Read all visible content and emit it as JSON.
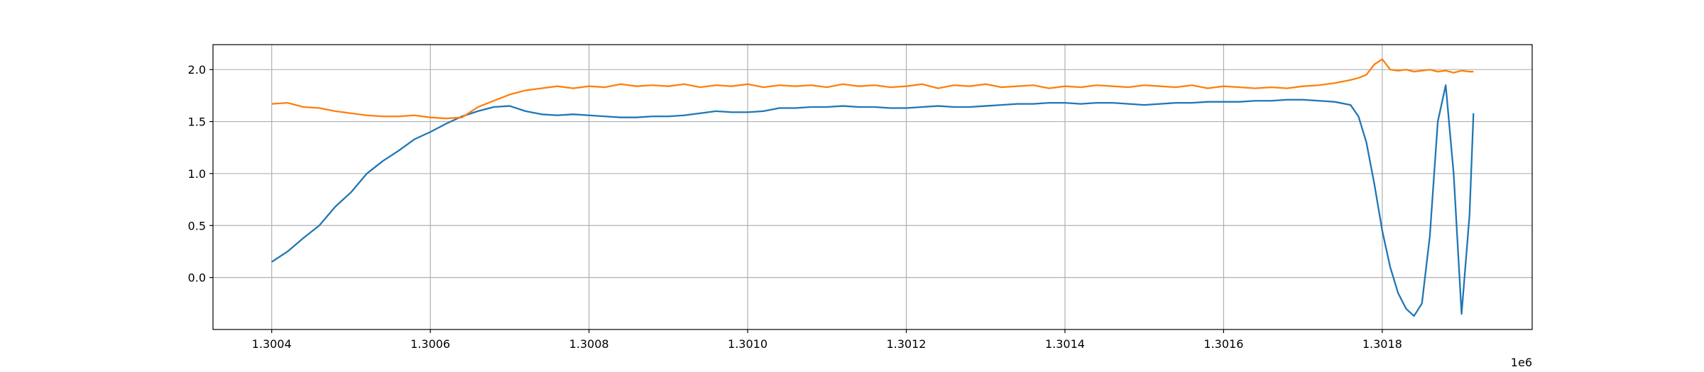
{
  "chart_data": {
    "type": "line",
    "x": [
      1300400,
      1300420,
      1300440,
      1300460,
      1300480,
      1300500,
      1300520,
      1300540,
      1300560,
      1300580,
      1300600,
      1300620,
      1300640,
      1300660,
      1300680,
      1300700,
      1300720,
      1300740,
      1300760,
      1300780,
      1300800,
      1300820,
      1300840,
      1300860,
      1300880,
      1300900,
      1300920,
      1300940,
      1300960,
      1300980,
      1301000,
      1301020,
      1301040,
      1301060,
      1301080,
      1301100,
      1301120,
      1301140,
      1301160,
      1301180,
      1301200,
      1301220,
      1301240,
      1301260,
      1301280,
      1301300,
      1301320,
      1301340,
      1301360,
      1301380,
      1301400,
      1301420,
      1301440,
      1301460,
      1301480,
      1301500,
      1301520,
      1301540,
      1301560,
      1301580,
      1301600,
      1301620,
      1301640,
      1301660,
      1301680,
      1301700,
      1301720,
      1301740,
      1301760,
      1301770,
      1301780,
      1301790,
      1301800,
      1301810,
      1301820,
      1301830,
      1301840,
      1301850,
      1301860,
      1301870,
      1301880,
      1301890,
      1301900,
      1301910,
      1301915
    ],
    "series": [
      {
        "color": "#1f77b4",
        "values": [
          0.15,
          0.25,
          0.38,
          0.5,
          0.68,
          0.82,
          1.0,
          1.12,
          1.22,
          1.33,
          1.4,
          1.48,
          1.55,
          1.6,
          1.64,
          1.65,
          1.6,
          1.57,
          1.56,
          1.57,
          1.56,
          1.55,
          1.54,
          1.54,
          1.55,
          1.55,
          1.56,
          1.58,
          1.6,
          1.59,
          1.59,
          1.6,
          1.63,
          1.63,
          1.64,
          1.64,
          1.65,
          1.64,
          1.64,
          1.63,
          1.63,
          1.64,
          1.65,
          1.64,
          1.64,
          1.65,
          1.66,
          1.67,
          1.67,
          1.68,
          1.68,
          1.67,
          1.68,
          1.68,
          1.67,
          1.66,
          1.67,
          1.68,
          1.68,
          1.69,
          1.69,
          1.69,
          1.7,
          1.7,
          1.71,
          1.71,
          1.7,
          1.69,
          1.66,
          1.55,
          1.3,
          0.9,
          0.45,
          0.1,
          -0.15,
          -0.3,
          -0.37,
          -0.25,
          0.4,
          1.5,
          1.85,
          1.0,
          -0.35,
          0.6,
          1.58
        ]
      },
      {
        "color": "#ff7f0e",
        "values": [
          1.67,
          1.68,
          1.64,
          1.63,
          1.6,
          1.58,
          1.56,
          1.55,
          1.55,
          1.56,
          1.54,
          1.53,
          1.54,
          1.64,
          1.7,
          1.76,
          1.8,
          1.82,
          1.84,
          1.82,
          1.84,
          1.83,
          1.86,
          1.84,
          1.85,
          1.84,
          1.86,
          1.83,
          1.85,
          1.84,
          1.86,
          1.83,
          1.85,
          1.84,
          1.85,
          1.83,
          1.86,
          1.84,
          1.85,
          1.83,
          1.84,
          1.86,
          1.82,
          1.85,
          1.84,
          1.86,
          1.83,
          1.84,
          1.85,
          1.82,
          1.84,
          1.83,
          1.85,
          1.84,
          1.83,
          1.85,
          1.84,
          1.83,
          1.85,
          1.82,
          1.84,
          1.83,
          1.82,
          1.83,
          1.82,
          1.84,
          1.85,
          1.87,
          1.9,
          1.92,
          1.95,
          2.05,
          2.1,
          2.0,
          1.99,
          2.0,
          1.98,
          1.99,
          2.0,
          1.98,
          1.99,
          1.97,
          1.99,
          1.98,
          1.98
        ]
      }
    ],
    "xlim": [
      1300326,
      1301989
    ],
    "xticks": [
      {
        "value": 1300400,
        "label": "1.3004"
      },
      {
        "value": 1300600,
        "label": "1.3006"
      },
      {
        "value": 1300800,
        "label": "1.3008"
      },
      {
        "value": 1301000,
        "label": "1.3010"
      },
      {
        "value": 1301200,
        "label": "1.3012"
      },
      {
        "value": 1301400,
        "label": "1.3014"
      },
      {
        "value": 1301600,
        "label": "1.3016"
      },
      {
        "value": 1301800,
        "label": "1.3018"
      }
    ],
    "x_offset_text": "1e6",
    "ylim": [
      -0.5,
      2.24
    ],
    "yticks": [
      {
        "value": 0,
        "label": "0.0"
      },
      {
        "value": 0.5,
        "label": "0.5"
      },
      {
        "value": 1,
        "label": "1.0"
      },
      {
        "value": 1.5,
        "label": "1.5"
      },
      {
        "value": 2,
        "label": "2.0"
      }
    ],
    "grid": true
  }
}
